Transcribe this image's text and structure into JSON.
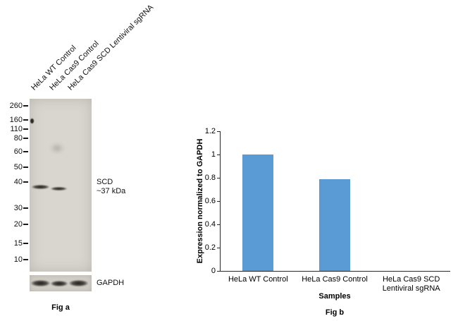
{
  "fig_a": {
    "caption": "Fig a",
    "lane_labels": [
      "HeLa WT Control",
      "HeLa Cas9 Control",
      "HeLa Cas9 SCD Lentiviral sgRNA"
    ],
    "mw_markers": [
      "260",
      "160",
      "110",
      "80",
      "60",
      "50",
      "40",
      "30",
      "20",
      "15",
      "10"
    ],
    "target_label": "SCD",
    "target_size": "~37 kDa",
    "loading_control": "GAPDH"
  },
  "fig_b": {
    "caption": "Fig b"
  },
  "chart_data": {
    "type": "bar",
    "title": "",
    "categories": [
      "HeLa WT Control",
      "HeLa Cas9 Control",
      "HeLa Cas9 SCD\nLentiviral sgRNA"
    ],
    "values": [
      1.0,
      0.79,
      0
    ],
    "xlabel": "Samples",
    "ylabel": "Expression normalized to GAPDH",
    "ylim": [
      0,
      1.2
    ],
    "yticks": [
      0,
      0.2,
      0.4,
      0.6,
      0.8,
      1,
      1.2
    ],
    "ytick_labels": [
      "0",
      "0.2",
      "0.4",
      "0.6",
      "0.8",
      "1",
      "1.2"
    ],
    "bar_color": "#5B9BD5",
    "grid": false,
    "legend": false
  }
}
